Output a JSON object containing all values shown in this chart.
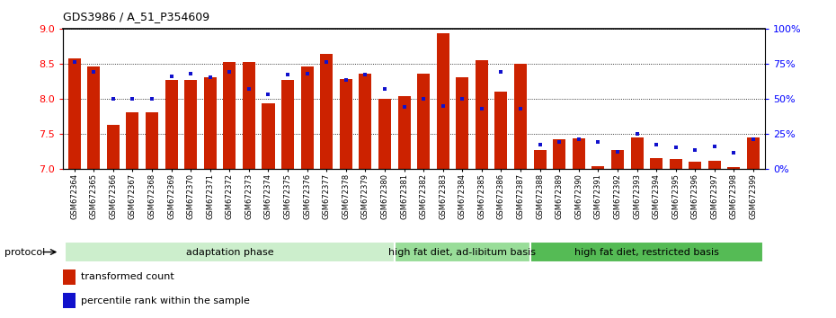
{
  "title": "GDS3986 / A_51_P354609",
  "samples": [
    "GSM672364",
    "GSM672365",
    "GSM672366",
    "GSM672367",
    "GSM672368",
    "GSM672369",
    "GSM672370",
    "GSM672371",
    "GSM672372",
    "GSM672373",
    "GSM672374",
    "GSM672375",
    "GSM672376",
    "GSM672377",
    "GSM672378",
    "GSM672379",
    "GSM672380",
    "GSM672381",
    "GSM672382",
    "GSM672383",
    "GSM672384",
    "GSM672385",
    "GSM672386",
    "GSM672387",
    "GSM672388",
    "GSM672389",
    "GSM672390",
    "GSM672391",
    "GSM672392",
    "GSM672393",
    "GSM672394",
    "GSM672395",
    "GSM672396",
    "GSM672397",
    "GSM672398",
    "GSM672399"
  ],
  "red_values": [
    8.57,
    8.46,
    7.62,
    7.8,
    7.8,
    8.26,
    8.26,
    8.31,
    8.52,
    8.52,
    7.93,
    8.26,
    8.46,
    8.64,
    8.28,
    8.35,
    8.0,
    8.04,
    8.35,
    8.93,
    8.3,
    8.55,
    8.1,
    8.5,
    7.26,
    7.42,
    7.43,
    7.04,
    7.27,
    7.45,
    7.15,
    7.14,
    7.1,
    7.11,
    7.02,
    7.45
  ],
  "blue_values": [
    0.76,
    0.69,
    0.5,
    0.5,
    0.5,
    0.66,
    0.68,
    0.65,
    0.69,
    0.57,
    0.53,
    0.67,
    0.68,
    0.76,
    0.63,
    0.67,
    0.57,
    0.44,
    0.5,
    0.45,
    0.5,
    0.43,
    0.69,
    0.43,
    0.17,
    0.19,
    0.21,
    0.19,
    0.12,
    0.25,
    0.17,
    0.15,
    0.13,
    0.16,
    0.11,
    0.21
  ],
  "groups": [
    {
      "label": "adaptation phase",
      "start": 0,
      "end": 17,
      "color": "#cceecc"
    },
    {
      "label": "high fat diet, ad-libitum basis",
      "start": 17,
      "end": 24,
      "color": "#99dd99"
    },
    {
      "label": "high fat diet, restricted basis",
      "start": 24,
      "end": 36,
      "color": "#55bb55"
    }
  ],
  "ylim_left": [
    7.0,
    9.0
  ],
  "ylim_right": [
    0.0,
    1.0
  ],
  "yticks_left": [
    7.0,
    7.5,
    8.0,
    8.5,
    9.0
  ],
  "yticks_right": [
    0.0,
    0.25,
    0.5,
    0.75,
    1.0
  ],
  "ytick_labels_right": [
    "0%",
    "25%",
    "50%",
    "75%",
    "100%"
  ],
  "bar_color_red": "#cc2200",
  "bar_color_blue": "#1111cc",
  "bar_width": 0.65,
  "background_color": "#ffffff",
  "protocol_label": "protocol",
  "legend_red": "transformed count",
  "legend_blue": "percentile rank within the sample"
}
